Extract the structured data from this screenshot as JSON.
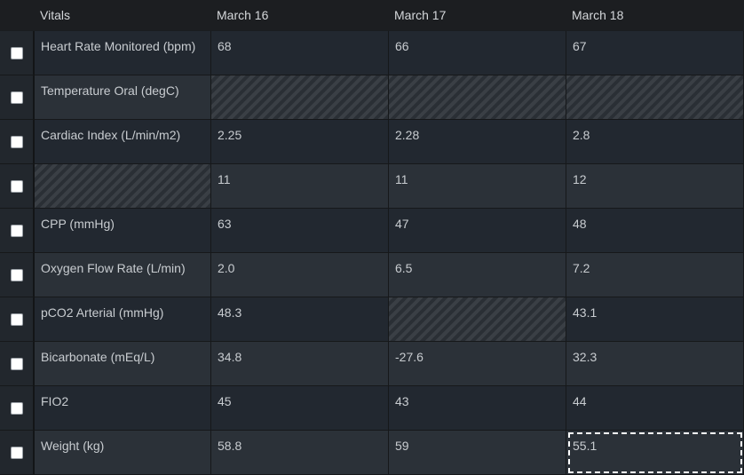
{
  "header": {
    "col_vitals": "Vitals",
    "col_d1": "March 16",
    "col_d2": "March 17",
    "col_d3": "March 18"
  },
  "rows": [
    {
      "label": "Heart Rate Monitored (bpm)",
      "d1": "68",
      "d2": "66",
      "d3": "67"
    },
    {
      "label": "Temperature Oral (degC)",
      "d1": "",
      "d2": "",
      "d3": ""
    },
    {
      "label": "Cardiac Index (L/min/m2)",
      "d1": "2.25",
      "d2": "2.28",
      "d3": "2.8"
    },
    {
      "label": "",
      "d1": "11",
      "d2": "11",
      "d3": "12"
    },
    {
      "label": "CPP (mmHg)",
      "d1": "63",
      "d2": "47",
      "d3": "48"
    },
    {
      "label": "Oxygen Flow Rate (L/min)",
      "d1": "2.0",
      "d2": "6.5",
      "d3": "7.2"
    },
    {
      "label": "pCO2 Arterial (mmHg)",
      "d1": "48.3",
      "d2": "",
      "d3": "43.1"
    },
    {
      "label": "Bicarbonate (mEq/L)",
      "d1": "34.8",
      "d2": "-27.6",
      "d3": "32.3"
    },
    {
      "label": "FIO2",
      "d1": "45",
      "d2": "43",
      "d3": "44"
    },
    {
      "label": "Weight (kg)",
      "d1": "58.8",
      "d2": "59",
      "d3": "55.1"
    }
  ]
}
